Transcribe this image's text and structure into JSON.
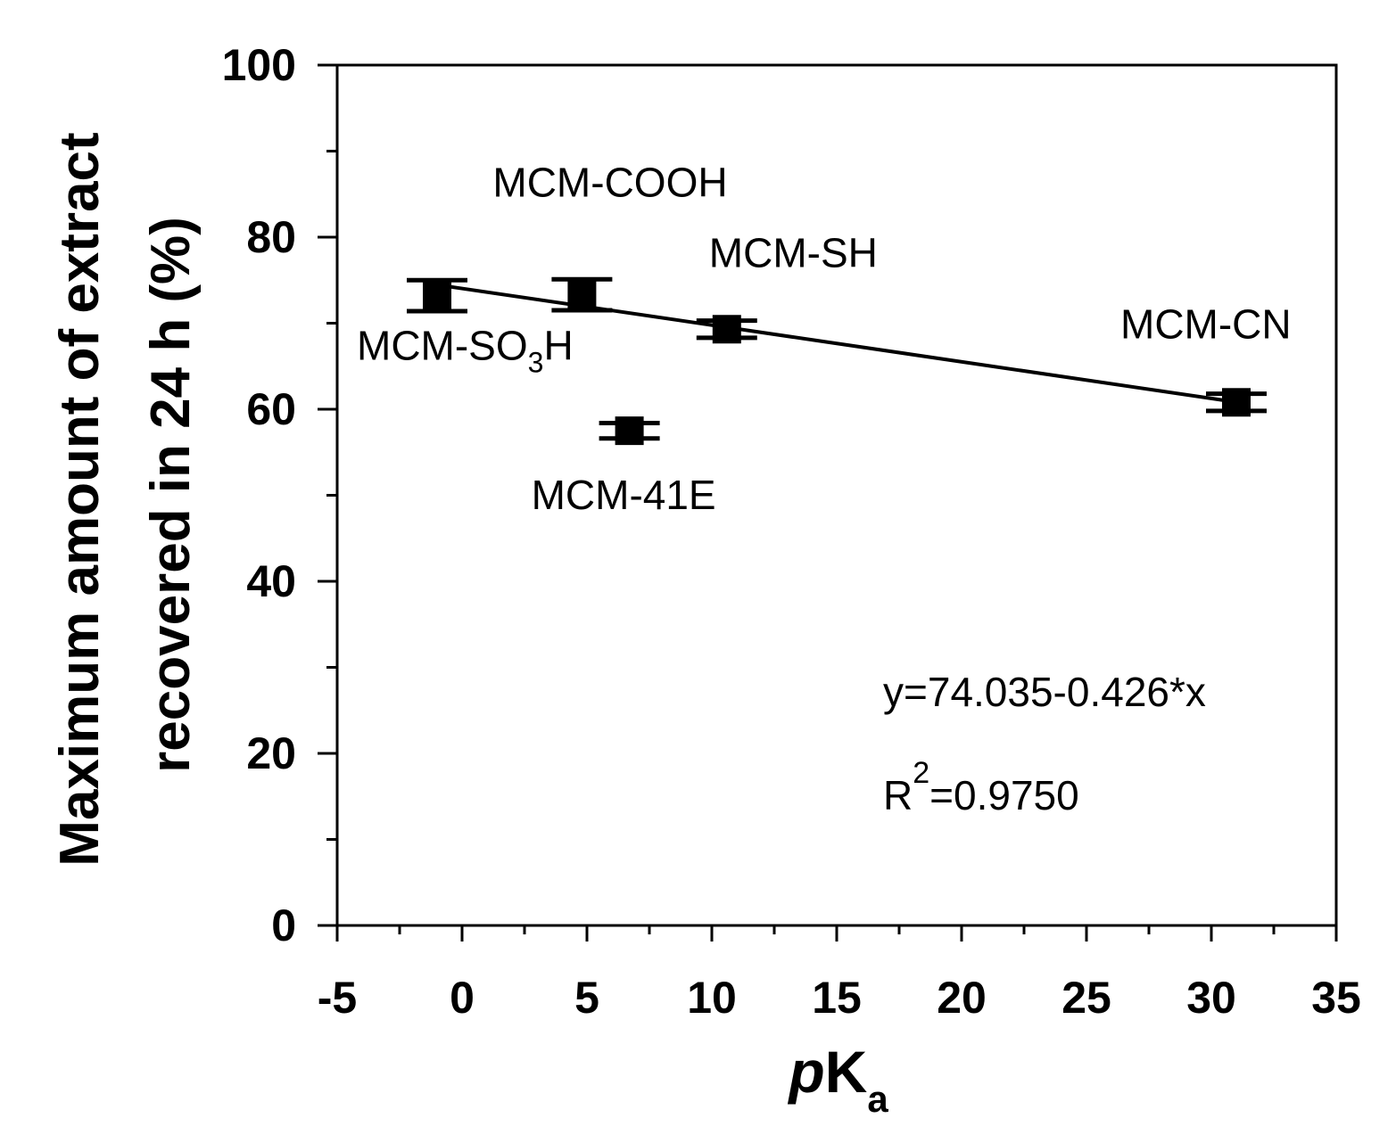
{
  "chart_data": {
    "type": "scatter",
    "title": "",
    "xlabel": {
      "main": "pK",
      "italic_part": "p",
      "roman_part": "K",
      "subscript": "a"
    },
    "ylabel": {
      "line1": "Maximum amount of extract",
      "line2": "recovered in 24 h (%)"
    },
    "xlim": [
      -5,
      35
    ],
    "ylim": [
      0,
      100
    ],
    "x_ticks": [
      -5,
      0,
      5,
      10,
      15,
      20,
      25,
      30,
      35
    ],
    "y_ticks": [
      0,
      20,
      40,
      60,
      80,
      100
    ],
    "x_minor_step": 2.5,
    "y_minor_step": 10,
    "points": [
      {
        "name": "MCM-SO3H",
        "x": -1.0,
        "y": 73.2,
        "err_y": 1.8,
        "label": "MCM-SO",
        "label_sub": "3",
        "label_suffix": "H"
      },
      {
        "name": "MCM-COOH",
        "x": 4.8,
        "y": 73.3,
        "err_y": 1.8,
        "label": "MCM-COOH",
        "label_sub": "",
        "label_suffix": ""
      },
      {
        "name": "MCM-SH",
        "x": 10.6,
        "y": 69.3,
        "err_y": 1.0,
        "label": "MCM-SH",
        "label_sub": "",
        "label_suffix": ""
      },
      {
        "name": "MCM-41E",
        "x": 6.7,
        "y": 57.5,
        "err_y": 0.9,
        "label": "MCM-41E",
        "label_sub": "",
        "label_suffix": ""
      },
      {
        "name": "MCM-CN",
        "x": 31.0,
        "y": 60.8,
        "err_y": 1.0,
        "label": "MCM-CN",
        "label_sub": "",
        "label_suffix": ""
      }
    ],
    "fit": {
      "intercept": 74.035,
      "slope": -0.426,
      "x_range": [
        -1.0,
        31.0
      ],
      "equation": "y=74.035-0.426*x",
      "r2_prefix": "R",
      "r2_sup": "2",
      "r2_value": "=0.9750"
    }
  },
  "colors": {
    "foreground": "#000000",
    "background": "#ffffff"
  }
}
